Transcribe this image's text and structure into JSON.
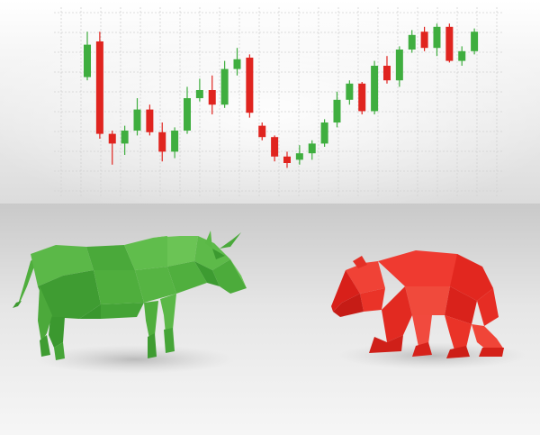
{
  "chart_data": {
    "type": "candlestick",
    "title": "",
    "xlabel": "",
    "ylabel": "",
    "grid": true,
    "ylim": [
      0,
      100
    ],
    "colors": {
      "up": "#3fae3f",
      "down": "#e0241f"
    },
    "candles": [
      {
        "open": 68,
        "close": 88,
        "high": 96,
        "low": 66
      },
      {
        "open": 90,
        "close": 33,
        "high": 96,
        "low": 30
      },
      {
        "open": 33,
        "close": 27,
        "high": 35,
        "low": 14
      },
      {
        "open": 27,
        "close": 35,
        "high": 38,
        "low": 20
      },
      {
        "open": 35,
        "close": 48,
        "high": 55,
        "low": 32
      },
      {
        "open": 48,
        "close": 34,
        "high": 51,
        "low": 32
      },
      {
        "open": 34,
        "close": 22,
        "high": 40,
        "low": 16
      },
      {
        "open": 22,
        "close": 35,
        "high": 37,
        "low": 18
      },
      {
        "open": 35,
        "close": 55,
        "high": 62,
        "low": 33
      },
      {
        "open": 55,
        "close": 60,
        "high": 67,
        "low": 53
      },
      {
        "open": 60,
        "close": 51,
        "high": 69,
        "low": 45
      },
      {
        "open": 51,
        "close": 73,
        "high": 78,
        "low": 49
      },
      {
        "open": 73,
        "close": 79,
        "high": 86,
        "low": 69
      },
      {
        "open": 80,
        "close": 46,
        "high": 82,
        "low": 43
      },
      {
        "open": 38,
        "close": 31,
        "high": 40,
        "low": 29
      },
      {
        "open": 31,
        "close": 19,
        "high": 32,
        "low": 16
      },
      {
        "open": 19,
        "close": 15,
        "high": 22,
        "low": 12
      },
      {
        "open": 17,
        "close": 21,
        "high": 26,
        "low": 14
      },
      {
        "open": 21,
        "close": 27,
        "high": 29,
        "low": 17
      },
      {
        "open": 27,
        "close": 40,
        "high": 42,
        "low": 25
      },
      {
        "open": 40,
        "close": 54,
        "high": 59,
        "low": 37
      },
      {
        "open": 54,
        "close": 64,
        "high": 66,
        "low": 51
      },
      {
        "open": 64,
        "close": 47,
        "high": 65,
        "low": 45
      },
      {
        "open": 47,
        "close": 75,
        "high": 78,
        "low": 45
      },
      {
        "open": 75,
        "close": 66,
        "high": 81,
        "low": 64
      },
      {
        "open": 66,
        "close": 85,
        "high": 87,
        "low": 62
      },
      {
        "open": 85,
        "close": 94,
        "high": 97,
        "low": 83
      },
      {
        "open": 96,
        "close": 86,
        "high": 99,
        "low": 84
      },
      {
        "open": 86,
        "close": 99,
        "high": 101,
        "low": 81
      },
      {
        "open": 99,
        "close": 78,
        "high": 101,
        "low": 77
      },
      {
        "open": 78,
        "close": 84,
        "high": 87,
        "low": 75
      },
      {
        "open": 84,
        "close": 96,
        "high": 98,
        "low": 82
      }
    ]
  },
  "illustration": {
    "bull": {
      "color": "#4caa3c"
    },
    "bear": {
      "color": "#e8302a"
    }
  }
}
